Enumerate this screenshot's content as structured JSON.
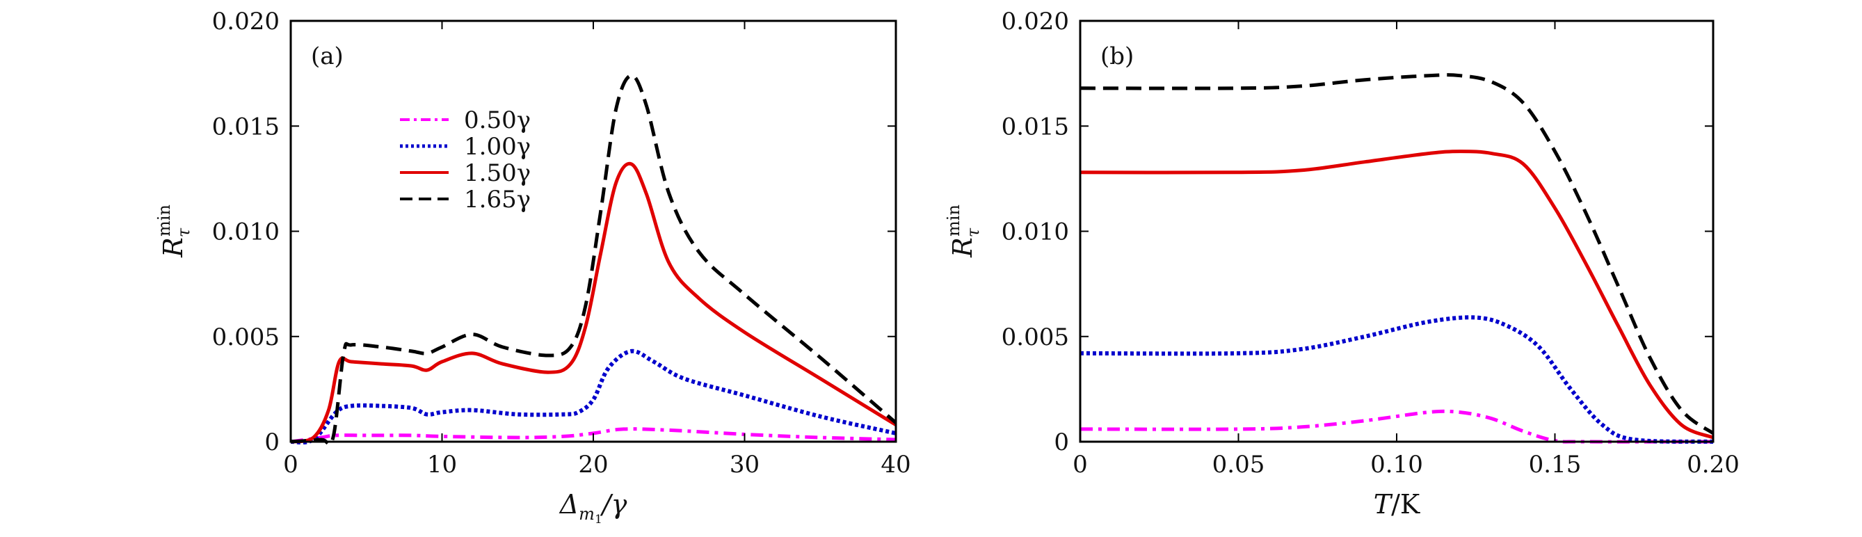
{
  "chart_data": [
    {
      "type": "line",
      "panel_label": "(a)",
      "xlabel": "Δm1/γ",
      "ylabel": "Rτmin",
      "xlim": [
        0,
        40
      ],
      "ylim": [
        0,
        0.02
      ],
      "xticks": [
        0,
        10,
        20,
        30,
        40
      ],
      "xtick_labels": [
        "0",
        "10",
        "20",
        "30",
        "40"
      ],
      "yticks": [
        0,
        0.005,
        0.01,
        0.015,
        0.02
      ],
      "ytick_labels": [
        "0",
        "0.005",
        "0.010",
        "0.015",
        "0.020"
      ],
      "grid": false,
      "legend": "upper-middle",
      "series": [
        {
          "name": "0.50γ",
          "color": "#ff00ff",
          "dash": "dashdot",
          "x": [
            0,
            2,
            3,
            5,
            8,
            10,
            15,
            18,
            20,
            22,
            25,
            30,
            35,
            40
          ],
          "y": [
            0,
            0.0002,
            0.0003,
            0.0003,
            0.0003,
            0.00025,
            0.0002,
            0.00025,
            0.0004,
            0.0006,
            0.00055,
            0.00035,
            0.0002,
            0.0001
          ]
        },
        {
          "name": "1.00γ",
          "color": "#0000cc",
          "dash": "dotted",
          "x": [
            0,
            1.5,
            3,
            4,
            6,
            8,
            9,
            10,
            12,
            15,
            18,
            19,
            20,
            21,
            22.5,
            24,
            26,
            30,
            35,
            40
          ],
          "y": [
            0,
            0.0001,
            0.0014,
            0.0017,
            0.0017,
            0.0016,
            0.0013,
            0.0014,
            0.0015,
            0.0013,
            0.0013,
            0.0014,
            0.002,
            0.0035,
            0.0043,
            0.0038,
            0.003,
            0.0022,
            0.0012,
            0.0004
          ]
        },
        {
          "name": "1.50γ",
          "color": "#e00000",
          "dash": "solid",
          "x": [
            0,
            1.5,
            2.5,
            3.2,
            4,
            6,
            8,
            9,
            10,
            12,
            14,
            17,
            18.5,
            19.5,
            20.5,
            21.5,
            22.5,
            23.5,
            25,
            27,
            30,
            35,
            40
          ],
          "y": [
            0,
            0.0002,
            0.0015,
            0.0038,
            0.0038,
            0.0037,
            0.0036,
            0.0034,
            0.0038,
            0.0042,
            0.0037,
            0.0033,
            0.0037,
            0.0055,
            0.009,
            0.0123,
            0.0132,
            0.0118,
            0.0085,
            0.0068,
            0.0052,
            0.003,
            0.0008
          ]
        },
        {
          "name": "1.65γ",
          "color": "#000000",
          "dash": "dashed",
          "x": [
            0,
            2,
            2.8,
            3.5,
            4,
            6,
            8,
            9,
            10,
            12,
            14,
            17,
            18.5,
            19.5,
            20.5,
            21.5,
            22.5,
            23.5,
            25,
            27,
            30,
            35,
            40
          ],
          "y": [
            0,
            0.0001,
            0.0002,
            0.0042,
            0.0046,
            0.0045,
            0.0043,
            0.0042,
            0.0045,
            0.0051,
            0.0045,
            0.0041,
            0.0045,
            0.0065,
            0.011,
            0.0158,
            0.0174,
            0.016,
            0.0118,
            0.009,
            0.007,
            0.004,
            0.0009
          ]
        }
      ]
    },
    {
      "type": "line",
      "panel_label": "(b)",
      "xlabel": "T/K",
      "ylabel": "Rτmin",
      "xlim": [
        0,
        0.2
      ],
      "ylim": [
        0,
        0.02
      ],
      "xticks": [
        0,
        0.05,
        0.1,
        0.15,
        0.2
      ],
      "xtick_labels": [
        "0",
        "0.05",
        "0.10",
        "0.15",
        "0.20"
      ],
      "yticks": [
        0,
        0.005,
        0.01,
        0.015,
        0.02
      ],
      "ytick_labels": [
        "0",
        "0.005",
        "0.010",
        "0.015",
        "0.020"
      ],
      "grid": false,
      "legend": "none",
      "series": [
        {
          "name": "0.50γ",
          "color": "#ff00ff",
          "dash": "dashdot",
          "x": [
            0,
            0.05,
            0.07,
            0.09,
            0.11,
            0.12,
            0.13,
            0.14,
            0.15,
            0.16,
            0.2
          ],
          "y": [
            0.0006,
            0.0006,
            0.0007,
            0.001,
            0.0014,
            0.0014,
            0.0011,
            0.0005,
            5e-05,
            0,
            0
          ]
        },
        {
          "name": "1.00γ",
          "color": "#0000cc",
          "dash": "dotted",
          "x": [
            0,
            0.05,
            0.07,
            0.09,
            0.11,
            0.125,
            0.135,
            0.145,
            0.155,
            0.165,
            0.175,
            0.2
          ],
          "y": [
            0.0042,
            0.0042,
            0.0044,
            0.005,
            0.0057,
            0.0059,
            0.0055,
            0.0045,
            0.0025,
            0.0008,
            0.0001,
            0
          ]
        },
        {
          "name": "1.50γ",
          "color": "#e00000",
          "dash": "solid",
          "x": [
            0,
            0.05,
            0.07,
            0.09,
            0.11,
            0.12,
            0.13,
            0.14,
            0.15,
            0.16,
            0.17,
            0.18,
            0.19,
            0.2
          ],
          "y": [
            0.0128,
            0.0128,
            0.0129,
            0.0133,
            0.0137,
            0.0138,
            0.0137,
            0.0132,
            0.0111,
            0.0084,
            0.0055,
            0.0027,
            0.0008,
            0.0002
          ]
        },
        {
          "name": "1.65γ",
          "color": "#000000",
          "dash": "dashed",
          "x": [
            0,
            0.05,
            0.07,
            0.09,
            0.11,
            0.12,
            0.13,
            0.14,
            0.15,
            0.16,
            0.17,
            0.18,
            0.19,
            0.2
          ],
          "y": [
            0.0168,
            0.0168,
            0.0169,
            0.0172,
            0.0174,
            0.0174,
            0.0171,
            0.0161,
            0.0138,
            0.0108,
            0.0074,
            0.004,
            0.0015,
            0.0004
          ]
        }
      ]
    }
  ]
}
